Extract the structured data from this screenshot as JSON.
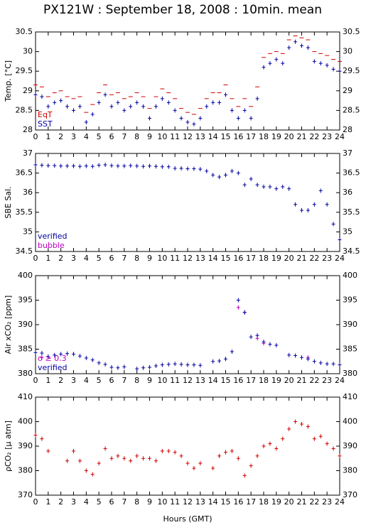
{
  "title": "PX121W : September 18, 2008 : 10min. mean",
  "x_label": "Hours (GMT)",
  "chart_data": [
    {
      "type": "scatter",
      "y_label": "Temp. [°C]",
      "xlim": [
        0,
        24
      ],
      "xticks": [
        0,
        1,
        2,
        3,
        4,
        5,
        6,
        7,
        8,
        9,
        10,
        11,
        12,
        13,
        14,
        15,
        16,
        17,
        18,
        19,
        20,
        21,
        22,
        23,
        24
      ],
      "ylim": [
        28,
        30.5
      ],
      "yticks": [
        28,
        28.5,
        29,
        29.5,
        30,
        30.5
      ],
      "x": [
        0,
        0.5,
        1,
        1.5,
        2,
        2.5,
        3,
        3.5,
        4,
        4.5,
        5,
        5.5,
        6,
        6.5,
        7,
        7.5,
        8,
        8.5,
        9,
        9.5,
        10,
        10.5,
        11,
        11.5,
        12,
        12.5,
        13,
        13.5,
        14,
        14.5,
        15,
        15.5,
        16,
        16.5,
        17,
        17.5,
        18,
        18.5,
        19,
        19.5,
        20,
        20.5,
        21,
        21.5,
        22,
        22.5,
        23,
        23.5,
        24
      ],
      "series": [
        {
          "name": "EqT",
          "color": "#d00000",
          "marker": "dash",
          "values": [
            29.15,
            29.1,
            28.85,
            28.95,
            29.0,
            28.85,
            28.8,
            28.85,
            28.45,
            28.65,
            28.95,
            29.15,
            28.9,
            28.95,
            28.8,
            28.85,
            28.95,
            28.85,
            28.55,
            28.85,
            29.05,
            28.95,
            28.8,
            28.55,
            28.45,
            28.4,
            28.55,
            28.8,
            28.95,
            28.95,
            29.15,
            28.8,
            28.6,
            28.8,
            28.6,
            29.1,
            29.85,
            29.95,
            30.0,
            29.95,
            30.3,
            30.4,
            30.35,
            30.3,
            30.0,
            29.95,
            29.9,
            29.8,
            29.75
          ]
        },
        {
          "name": "SST",
          "color": "#0000a0",
          "marker": "plus",
          "values": [
            28.9,
            28.85,
            28.6,
            28.7,
            28.75,
            28.6,
            28.5,
            28.6,
            28.2,
            28.4,
            28.7,
            28.9,
            28.6,
            28.7,
            28.5,
            28.6,
            28.7,
            28.6,
            28.3,
            28.6,
            28.8,
            28.7,
            28.5,
            28.3,
            28.2,
            28.15,
            28.3,
            28.6,
            28.7,
            28.7,
            28.9,
            28.5,
            28.3,
            28.5,
            28.3,
            28.8,
            29.6,
            29.7,
            29.8,
            29.7,
            30.1,
            30.25,
            30.15,
            30.1,
            29.75,
            29.7,
            29.65,
            29.55,
            29.5
          ]
        }
      ]
    },
    {
      "type": "scatter",
      "y_label": "SBE Sal.",
      "xlim": [
        0,
        24
      ],
      "xticks": [
        0,
        1,
        2,
        3,
        4,
        5,
        6,
        7,
        8,
        9,
        10,
        11,
        12,
        13,
        14,
        15,
        16,
        17,
        18,
        19,
        20,
        21,
        22,
        23,
        24
      ],
      "ylim": [
        34.5,
        37
      ],
      "yticks": [
        34.5,
        35,
        35.5,
        36,
        36.5,
        37
      ],
      "x": [
        0,
        0.5,
        1,
        1.5,
        2,
        2.5,
        3,
        3.5,
        4,
        4.5,
        5,
        5.5,
        6,
        6.5,
        7,
        7.5,
        8,
        8.5,
        9,
        9.5,
        10,
        10.5,
        11,
        11.5,
        12,
        12.5,
        13,
        13.5,
        14,
        14.5,
        15,
        15.5,
        16,
        16.5,
        17,
        17.5,
        18,
        18.5,
        19,
        19.5,
        20,
        20.5,
        21,
        21.5,
        22,
        22.5,
        23,
        23.5,
        24
      ],
      "series": [
        {
          "name": "verified",
          "color": "#0000a0",
          "marker": "plus",
          "values": [
            36.71,
            36.7,
            36.69,
            36.69,
            36.68,
            36.68,
            36.68,
            36.67,
            36.68,
            36.67,
            36.7,
            36.71,
            36.69,
            36.68,
            36.68,
            36.69,
            36.68,
            36.67,
            36.68,
            36.67,
            36.66,
            36.66,
            36.62,
            36.62,
            36.61,
            36.61,
            36.6,
            36.55,
            36.45,
            36.4,
            36.45,
            36.55,
            36.5,
            36.2,
            36.35,
            36.2,
            36.15,
            36.15,
            36.1,
            36.15,
            36.1,
            35.7,
            35.55,
            35.55,
            35.7,
            36.05,
            35.7,
            35.2,
            34.8
          ]
        },
        {
          "name": "bubble",
          "color": "#c000c0",
          "marker": "plus",
          "values": []
        }
      ]
    },
    {
      "type": "scatter",
      "y_label": "Air xCO₂ [ppm]",
      "xlim": [
        0,
        24
      ],
      "xticks": [
        0,
        1,
        2,
        3,
        4,
        5,
        6,
        7,
        8,
        9,
        10,
        11,
        12,
        13,
        14,
        15,
        16,
        17,
        18,
        19,
        20,
        21,
        22,
        23,
        24
      ],
      "ylim": [
        380,
        400
      ],
      "yticks": [
        380,
        385,
        390,
        395,
        400
      ],
      "x": [
        0,
        0.5,
        1,
        1.5,
        2,
        2.5,
        3,
        3.5,
        4,
        4.5,
        5,
        5.5,
        6,
        6.5,
        7,
        7.5,
        8,
        8.5,
        9,
        9.5,
        10,
        10.5,
        11,
        11.5,
        12,
        12.5,
        13,
        13.5,
        14,
        14.5,
        15,
        15.5,
        16,
        16.5,
        17,
        17.5,
        18,
        18.5,
        19,
        19.5,
        20,
        20.5,
        21,
        21.5,
        22,
        22.5,
        23,
        23.5,
        24
      ],
      "series": [
        {
          "name": "σ ≥ 0.3",
          "color": "#c000c0",
          "marker": "plus",
          "values": [
            null,
            383.3,
            null,
            null,
            null,
            null,
            null,
            null,
            null,
            null,
            null,
            null,
            null,
            null,
            null,
            null,
            null,
            null,
            null,
            null,
            null,
            null,
            null,
            null,
            null,
            null,
            null,
            null,
            null,
            null,
            null,
            null,
            393.5,
            392.5,
            null,
            387.2,
            386.2,
            null,
            null,
            null,
            null,
            null,
            null,
            383.3,
            null,
            null,
            null,
            null,
            null
          ]
        },
        {
          "name": "verified",
          "color": "#0000a0",
          "marker": "plus",
          "values": [
            384.3,
            384.2,
            383.5,
            383.8,
            384.0,
            384.1,
            384.0,
            383.6,
            383.2,
            382.8,
            382.2,
            381.9,
            381.3,
            381.2,
            381.4,
            null,
            381.0,
            381.2,
            381.3,
            381.6,
            381.8,
            381.9,
            382.0,
            381.9,
            381.8,
            381.8,
            381.7,
            null,
            382.5,
            382.6,
            383.0,
            384.5,
            395.0,
            392.5,
            387.5,
            387.8,
            386.5,
            386.0,
            385.8,
            null,
            383.8,
            383.7,
            383.3,
            383.0,
            382.5,
            382.2,
            382.0,
            382.0,
            381.8
          ]
        }
      ]
    },
    {
      "type": "scatter",
      "y_label": "ρCO₂ [μ atm]",
      "xlim": [
        0,
        24
      ],
      "xticks": [
        0,
        1,
        2,
        3,
        4,
        5,
        6,
        7,
        8,
        9,
        10,
        11,
        12,
        13,
        14,
        15,
        16,
        17,
        18,
        19,
        20,
        21,
        22,
        23,
        24
      ],
      "ylim": [
        370,
        410
      ],
      "yticks": [
        370,
        380,
        390,
        400,
        410
      ],
      "x": [
        0,
        0.5,
        1,
        1.5,
        2,
        2.5,
        3,
        3.5,
        4,
        4.5,
        5,
        5.5,
        6,
        6.5,
        7,
        7.5,
        8,
        8.5,
        9,
        9.5,
        10,
        10.5,
        11,
        11.5,
        12,
        12.5,
        13,
        13.5,
        14,
        14.5,
        15,
        15.5,
        16,
        16.5,
        17,
        17.5,
        18,
        18.5,
        19,
        19.5,
        20,
        20.5,
        21,
        21.5,
        22,
        22.5,
        23,
        23.5,
        24
      ],
      "series": [
        {
          "name": null,
          "color": "#d00000",
          "marker": "plus",
          "values": [
            394.5,
            393,
            388,
            null,
            null,
            384,
            388,
            384,
            380,
            378.5,
            383,
            389,
            385,
            386,
            385,
            384,
            386,
            385,
            385,
            384,
            388,
            388,
            387.5,
            386,
            383,
            381,
            383,
            null,
            381,
            386,
            387.5,
            388,
            385,
            378,
            382,
            386,
            390,
            391,
            389,
            393,
            397,
            400,
            399,
            398,
            393,
            394,
            391,
            389,
            386
          ]
        }
      ]
    }
  ]
}
